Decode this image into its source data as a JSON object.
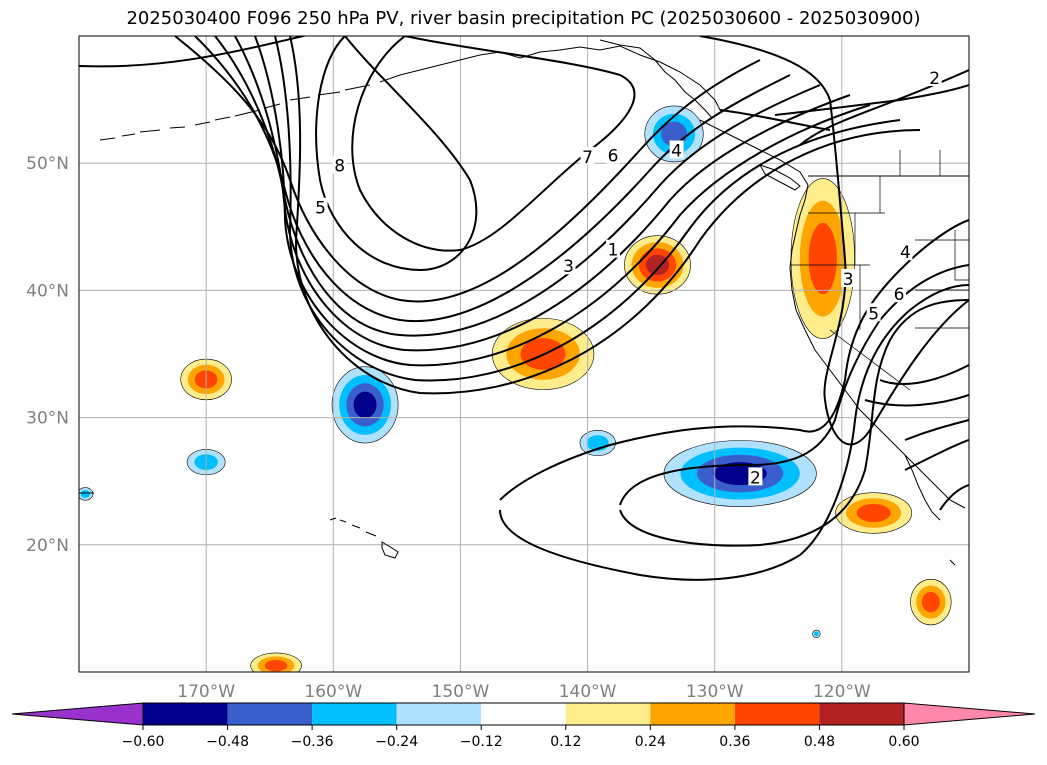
{
  "title": "2025030400 F096 250 hPa PV, river basin precipitation PC (2025030600 - 2025030900)",
  "map": {
    "lon_range": [
      -180,
      -110
    ],
    "lat_range": [
      10,
      60
    ],
    "lat_ticks": [
      {
        "value": 50,
        "label": "50°N"
      },
      {
        "value": 40,
        "label": "40°N"
      },
      {
        "value": 30,
        "label": "30°N"
      },
      {
        "value": 20,
        "label": "20°N"
      }
    ],
    "lon_ticks": [
      {
        "value": -170,
        "label": "170°W"
      },
      {
        "value": -160,
        "label": "160°W"
      },
      {
        "value": -150,
        "label": "150°W"
      },
      {
        "value": -140,
        "label": "140°W"
      },
      {
        "value": -130,
        "label": "130°W"
      },
      {
        "value": -120,
        "label": "120°W"
      }
    ],
    "colors": {
      "land_coast": "#000000",
      "grid": "#b0b0b0",
      "pv_contour": "#000000"
    },
    "pv_contour_labels": [
      {
        "text": "8",
        "lon": -159.5,
        "lat": 49.8
      },
      {
        "text": "5",
        "lon": -161,
        "lat": 46.5
      },
      {
        "text": "7",
        "lon": -140,
        "lat": 50.5
      },
      {
        "text": "6",
        "lon": -138,
        "lat": 50.6
      },
      {
        "text": "4",
        "lon": -133,
        "lat": 51
      },
      {
        "text": "3",
        "lon": -141.5,
        "lat": 41.9
      },
      {
        "text": "1",
        "lon": -138,
        "lat": 43.2
      },
      {
        "text": "2",
        "lon": -126.8,
        "lat": 25.3
      },
      {
        "text": "2",
        "lon": -112.7,
        "lat": 56.7
      },
      {
        "text": "4",
        "lon": -115,
        "lat": 43
      },
      {
        "text": "6",
        "lon": -115.5,
        "lat": 39.7
      },
      {
        "text": "5",
        "lon": -117.5,
        "lat": 38.2
      },
      {
        "text": "3",
        "lon": -119.5,
        "lat": 40.9
      }
    ],
    "precip_blobs": [
      {
        "lon": -170,
        "lat": 33,
        "rlon": 2,
        "rlat": 1.6,
        "level": 0.36
      },
      {
        "lon": -157.5,
        "lat": 31,
        "rlon": 2.6,
        "rlat": 3,
        "level": -0.48
      },
      {
        "lon": -170,
        "lat": 26.5,
        "rlon": 1.5,
        "rlat": 1,
        "level": -0.24
      },
      {
        "lon": -143.5,
        "lat": 35,
        "rlon": 4,
        "rlat": 2.8,
        "level": 0.36
      },
      {
        "lon": -134.5,
        "lat": 42,
        "rlon": 2.6,
        "rlat": 2.3,
        "level": 0.48
      },
      {
        "lon": -133.2,
        "lat": 52.3,
        "rlon": 2.3,
        "rlat": 2.2,
        "level": -0.36
      },
      {
        "lon": -139.2,
        "lat": 28,
        "rlon": 1.4,
        "rlat": 1,
        "level": -0.24
      },
      {
        "lon": -128,
        "lat": 25.6,
        "rlon": 6,
        "rlat": 2.6,
        "level": -0.48
      },
      {
        "lon": -121.5,
        "lat": 42.5,
        "rlon": 2.5,
        "rlat": 6.3,
        "level": 0.36
      },
      {
        "lon": -117.5,
        "lat": 22.5,
        "rlon": 3,
        "rlat": 1.6,
        "level": 0.36
      },
      {
        "lon": -113,
        "lat": 15.5,
        "rlon": 1.6,
        "rlat": 1.8,
        "level": 0.36
      },
      {
        "lon": -164.5,
        "lat": 10.5,
        "rlon": 2,
        "rlat": 1,
        "level": 0.36
      },
      {
        "lon": -122,
        "lat": 13,
        "rlon": 0.3,
        "rlat": 0.3,
        "level": -0.24
      },
      {
        "lon": -179.5,
        "lat": 24,
        "rlon": 0.6,
        "rlat": 0.5,
        "level": -0.24
      }
    ]
  },
  "colorbar": {
    "levels": [
      "−0.60",
      "−0.48",
      "−0.36",
      "−0.24",
      "−0.12",
      "0.12",
      "0.24",
      "0.36",
      "0.48",
      "0.60"
    ],
    "colors": [
      "#9932cc",
      "#00008b",
      "#3a5fcd",
      "#00bfff",
      "#b0e2ff",
      "#ffffff",
      "#ffec8b",
      "#ffa500",
      "#ff4500",
      "#b22222",
      "#ff88aa"
    ]
  }
}
